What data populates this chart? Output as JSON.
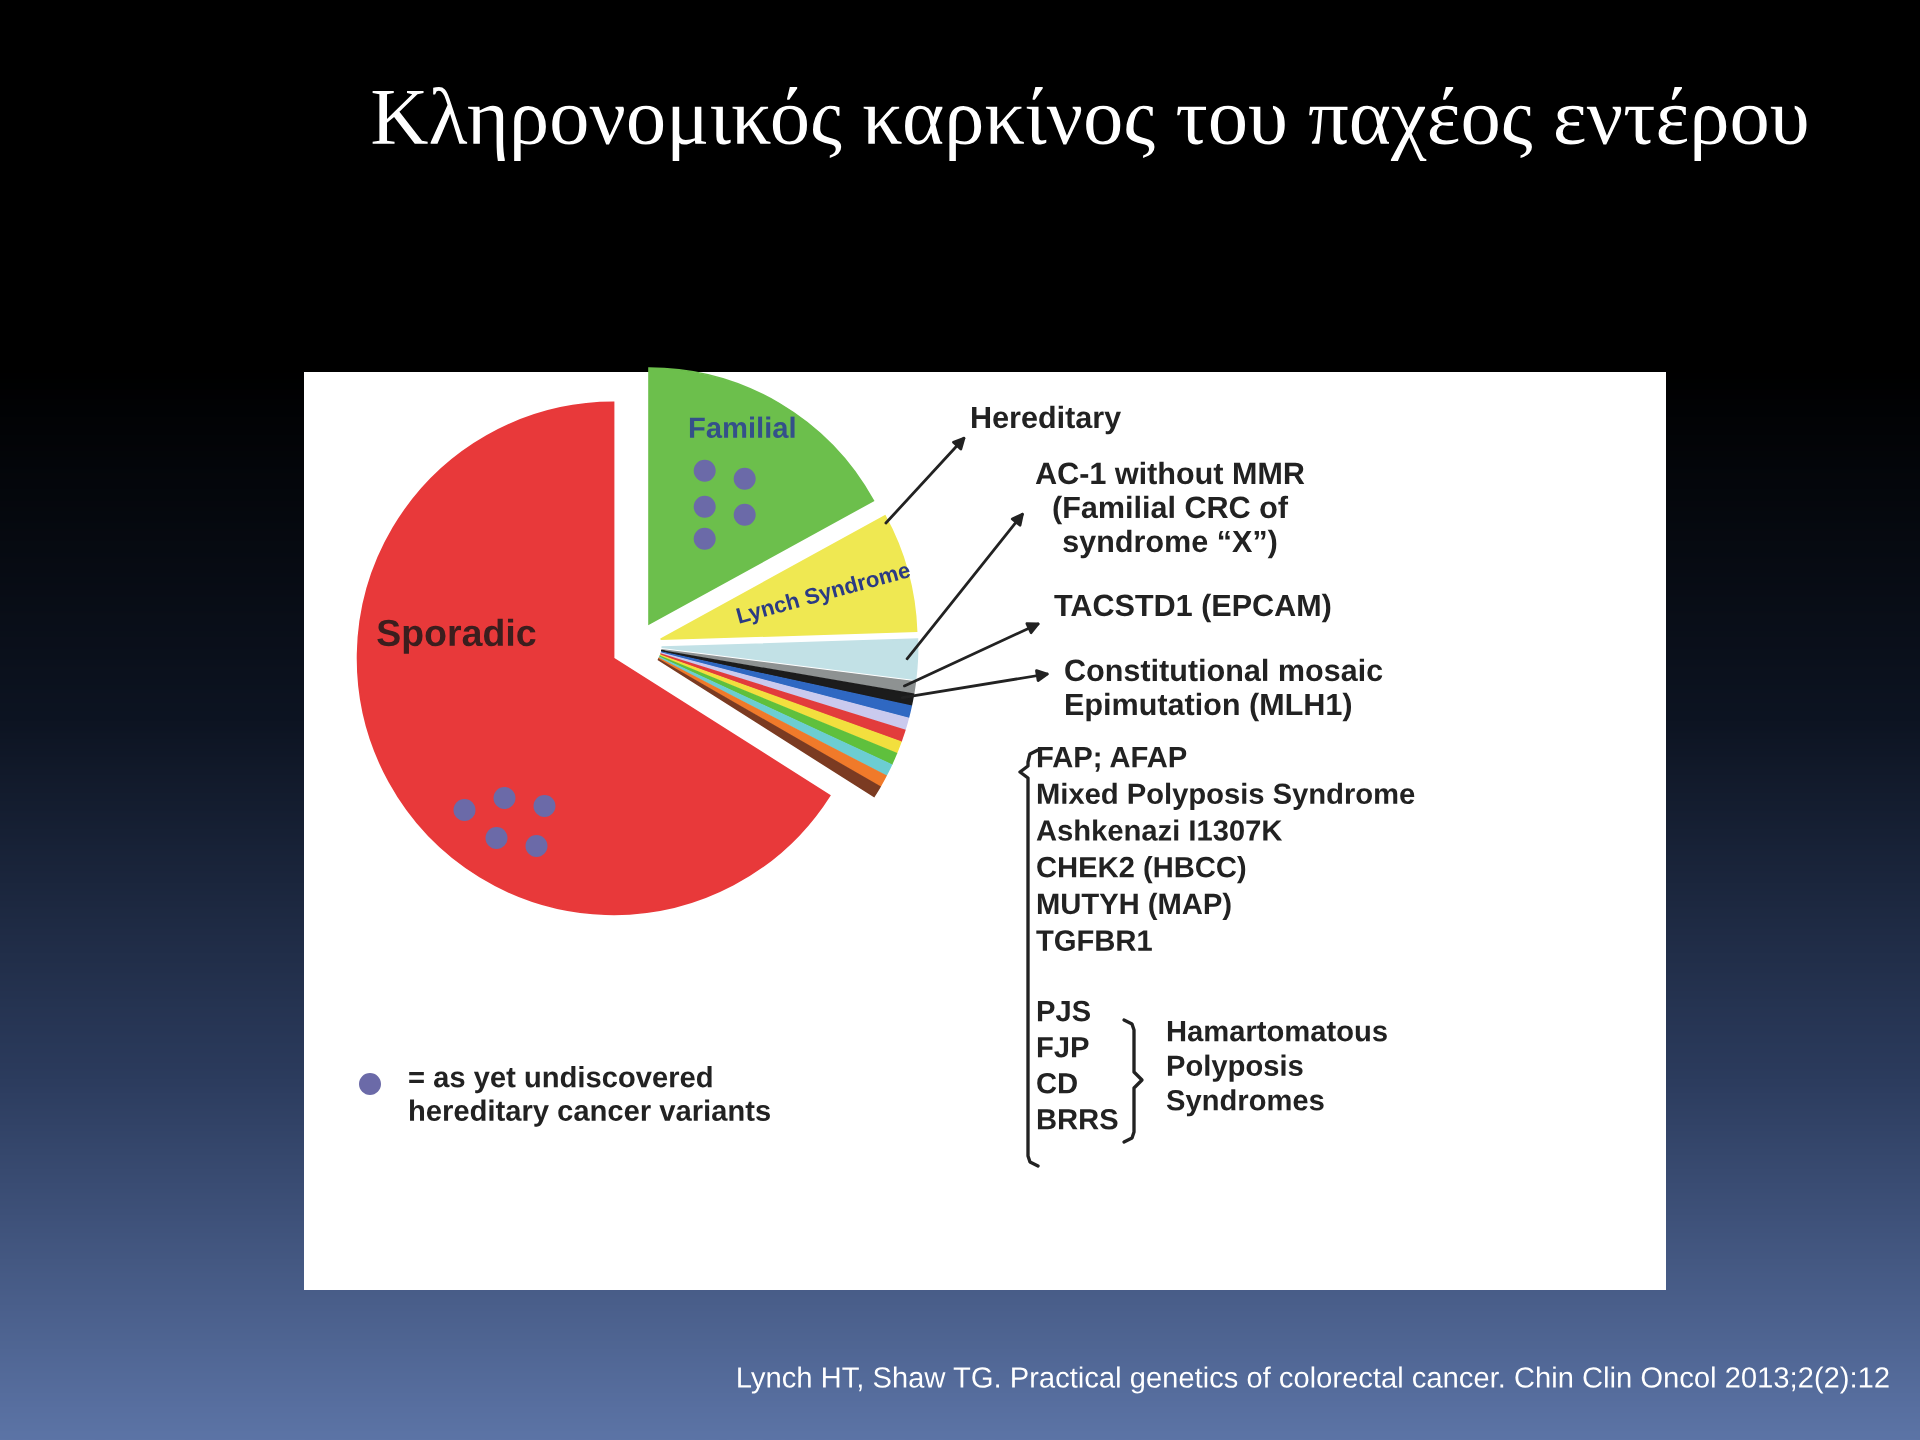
{
  "chart_data": {
    "type": "pie",
    "title": "Κληρονομικός καρκίνος του παχέος εντέρου",
    "categories": [
      "Familial",
      "Lynch Syndrome",
      "AC-1 without MMR\n(Familial CRC of\nsyndrome “X”)",
      "TACSTD1 (EPCAM)",
      "Constitutional mosaic\nEpimutation (MLH1)",
      null,
      null,
      null,
      null,
      null,
      null,
      null,
      null,
      "Sporadic"
    ],
    "values": [
      17,
      7.5,
      2.5,
      0.7,
      0.7,
      0.7,
      0.7,
      0.7,
      0.7,
      0.7,
      0.7,
      0.7,
      0.7,
      66
    ],
    "colors": [
      "#6cbf4c",
      "#efe852",
      "#c2e1e6",
      "#8e9292",
      "#1c1c1c",
      "#2f68c2",
      "#cacaee",
      "#e23c3c",
      "#f2df3e",
      "#5fc03d",
      "#6ccdd2",
      "#f07a2a",
      "#7b3b22",
      "#e8393a"
    ],
    "annotations": [
      "Hereditary",
      "FAP; AFAP\nMixed Polyposis Syndrome\nAshkenazi I1307K\nCHEK2 (HBCC)\nMUTYH (MAP)\nTGFBR1",
      "PJS\nFJP\nCD\nBRRS",
      "Hamartomatous\nPolyposis\nSyndromes",
      "= as yet undiscovered\nhereditary cancer variants",
      "Lynch HT, Shaw TG. Practical genetics of colorectal cancer. Chin Clin Oncol 2013;2(2):12"
    ]
  }
}
